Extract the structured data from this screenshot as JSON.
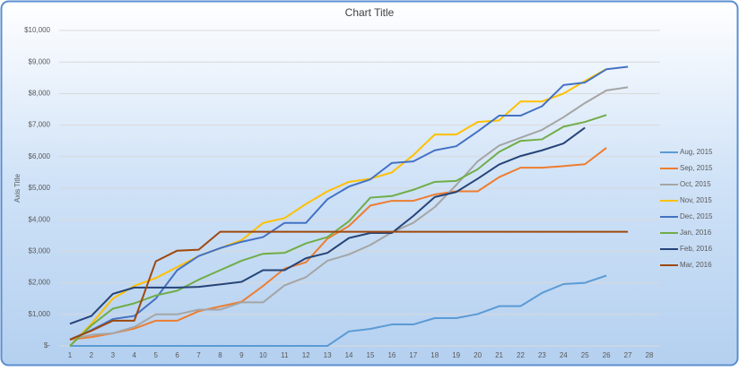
{
  "chart_data": {
    "type": "line",
    "title": "Chart Title",
    "y_axis_label": "Axis Title",
    "categories": [
      1,
      2,
      3,
      4,
      5,
      6,
      7,
      8,
      9,
      10,
      11,
      12,
      13,
      14,
      15,
      16,
      17,
      18,
      19,
      20,
      21,
      22,
      23,
      24,
      25,
      26,
      27,
      28
    ],
    "ylim": [
      0,
      10000
    ],
    "yticks": [
      {
        "value": 0,
        "label": "$-"
      },
      {
        "value": 1000,
        "label": "$1,000"
      },
      {
        "value": 2000,
        "label": "$2,000"
      },
      {
        "value": 3000,
        "label": "$3,000"
      },
      {
        "value": 4000,
        "label": "$4,000"
      },
      {
        "value": 5000,
        "label": "$5,000"
      },
      {
        "value": 6000,
        "label": "$6,000"
      },
      {
        "value": 7000,
        "label": "$7,000"
      },
      {
        "value": 8000,
        "label": "$8,000"
      },
      {
        "value": 9000,
        "label": "$9,000"
      },
      {
        "value": 10000,
        "label": "$10,000"
      }
    ],
    "grid": true,
    "legend": "right",
    "series": [
      {
        "name": "Aug, 2015",
        "color": "#5B9BD5",
        "values": [
          0,
          0,
          0,
          0,
          0,
          0,
          0,
          0,
          0,
          0,
          0,
          0,
          0,
          460,
          540,
          680,
          680,
          880,
          880,
          1010,
          1260,
          1260,
          1680,
          1960,
          2000,
          2230,
          null,
          null
        ]
      },
      {
        "name": "Sep, 2015",
        "color": "#ED7D31",
        "values": [
          200,
          280,
          400,
          550,
          800,
          800,
          1100,
          1250,
          1400,
          1900,
          2450,
          2650,
          3400,
          3800,
          4450,
          4600,
          4600,
          4800,
          4900,
          4900,
          5350,
          5650,
          5650,
          5700,
          5760,
          6280,
          null,
          null
        ]
      },
      {
        "name": "Oct, 2015",
        "color": "#A5A5A5",
        "values": [
          200,
          350,
          400,
          600,
          1000,
          1000,
          1150,
          1150,
          1380,
          1380,
          1920,
          2180,
          2700,
          2900,
          3200,
          3600,
          3900,
          4400,
          5100,
          5850,
          6350,
          6600,
          6850,
          7250,
          7700,
          8100,
          8200,
          null
        ]
      },
      {
        "name": "Nov, 2015",
        "color": "#FFC000",
        "values": [
          0,
          700,
          1500,
          1900,
          2150,
          2500,
          2850,
          3100,
          3350,
          3900,
          4050,
          4500,
          4900,
          5200,
          5300,
          5500,
          6050,
          6700,
          6700,
          7100,
          7150,
          7750,
          7750,
          8000,
          8400,
          8780,
          null,
          null
        ]
      },
      {
        "name": "Dec, 2015",
        "color": "#4472C4",
        "values": [
          200,
          500,
          850,
          950,
          1500,
          2400,
          2850,
          3100,
          3300,
          3450,
          3900,
          3900,
          4650,
          5050,
          5280,
          5800,
          5850,
          6200,
          6330,
          6800,
          7300,
          7300,
          7600,
          8270,
          8350,
          8770,
          8850,
          null
        ]
      },
      {
        "name": "Jan, 2016",
        "color": "#70AD47",
        "values": [
          0,
          650,
          1180,
          1350,
          1600,
          1750,
          2100,
          2400,
          2700,
          2920,
          2950,
          3250,
          3450,
          3950,
          4700,
          4750,
          4950,
          5200,
          5230,
          5600,
          6150,
          6500,
          6550,
          6950,
          7100,
          7320,
          null,
          null
        ]
      },
      {
        "name": "Feb, 2016",
        "color": "#264478",
        "values": [
          700,
          950,
          1650,
          1850,
          1850,
          1850,
          1870,
          1950,
          2030,
          2400,
          2400,
          2780,
          2950,
          3420,
          3580,
          3580,
          4120,
          4720,
          4880,
          5300,
          5750,
          6020,
          6200,
          6420,
          6920,
          null,
          null,
          null
        ]
      },
      {
        "name": "Mar, 2016",
        "color": "#9E480E",
        "values": [
          200,
          480,
          800,
          800,
          2680,
          3020,
          3050,
          3620,
          3620,
          3620,
          3620,
          3620,
          3620,
          3620,
          3620,
          3620,
          3620,
          3620,
          3620,
          3620,
          3620,
          3620,
          3620,
          3620,
          3620,
          3620,
          3620,
          null
        ]
      }
    ]
  }
}
